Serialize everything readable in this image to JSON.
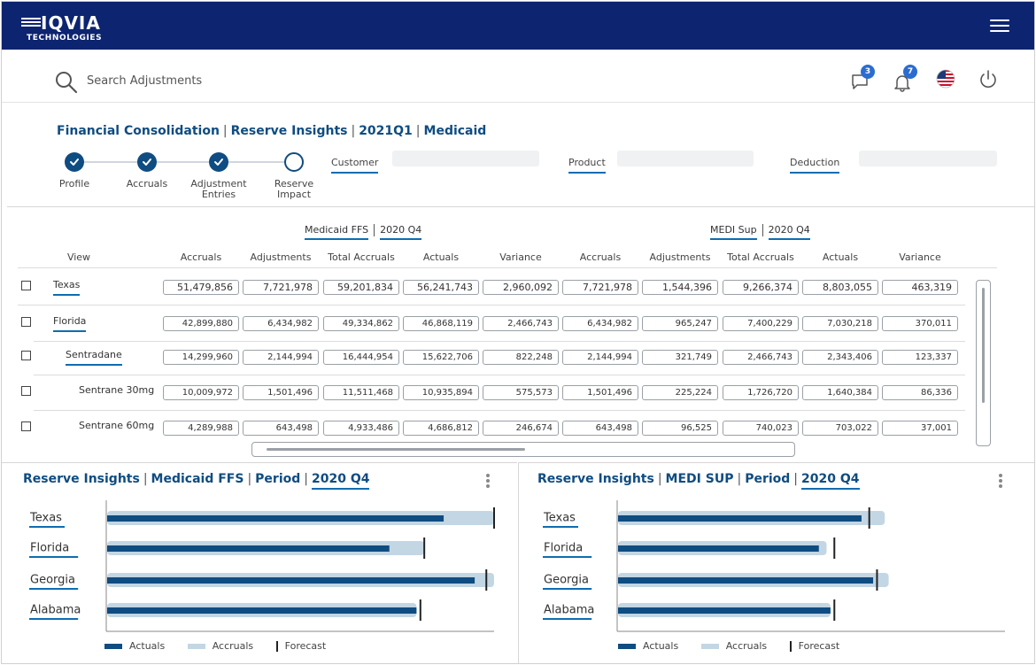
{
  "app": {
    "brand_name": "IQVIA",
    "brand_sub": "TECHNOLOGIES"
  },
  "search": {
    "placeholder": "Search Adjustments"
  },
  "header_icons": {
    "messages_badge": "3",
    "notifications_badge": "7"
  },
  "breadcrumb": [
    "Financial Consolidation",
    "Reserve Insights",
    "2021Q1",
    "Medicaid"
  ],
  "steps": [
    {
      "label": "Profile",
      "done": true
    },
    {
      "label": "Accruals",
      "done": true
    },
    {
      "label": "Adjustment Entries",
      "done": true
    },
    {
      "label": "Reserve Impact",
      "done": false
    }
  ],
  "filters": {
    "customer": "Customer",
    "product": "Product",
    "deduction": "Deduction"
  },
  "table": {
    "group1": {
      "name": "Medicaid FFS",
      "period": "2020 Q4"
    },
    "group2": {
      "name": "MEDI Sup",
      "period": "2020 Q4"
    },
    "view_header": "View",
    "columns": [
      "Accruals",
      "Adjustments",
      "Total Accruals",
      "Actuals",
      "Variance",
      "Accruals",
      "Adjustments",
      "Total Accruals",
      "Actuals",
      "Variance"
    ],
    "rows": [
      {
        "name": "Texas",
        "values": [
          "51,479,856",
          "7,721,978",
          "59,201,834",
          "56,241,743",
          "2,960,092",
          "7,721,978",
          "1,544,396",
          "9,266,374",
          "8,803,055",
          "463,319"
        ]
      },
      {
        "name": "Florida",
        "values": [
          "42,899,880",
          "6,434,982",
          "49,334,862",
          "46,868,119",
          "2,466,743",
          "6,434,982",
          "965,247",
          "7,400,229",
          "7,030,218",
          "370,011"
        ]
      },
      {
        "name": "Sentradane",
        "values": [
          "14,299,960",
          "2,144,994",
          "16,444,954",
          "15,622,706",
          "822,248",
          "2,144,994",
          "321,749",
          "2,466,743",
          "2,343,406",
          "123,337"
        ]
      },
      {
        "name": "Sentrane 30mg",
        "values": [
          "10,009,972",
          "1,501,496",
          "11,511,468",
          "10,935,894",
          "575,573",
          "1,501,496",
          "225,224",
          "1,726,720",
          "1,640,384",
          "86,336"
        ]
      },
      {
        "name": "Sentrane 60mg",
        "values": [
          "4,289,988",
          "643,498",
          "4,933,486",
          "4,686,812",
          "246,674",
          "643,498",
          "96,525",
          "740,023",
          "703,022",
          "37,001"
        ]
      }
    ]
  },
  "panel_left": {
    "title": [
      "Reserve Insights",
      "Medicaid FFS",
      "Period",
      "2020 Q4"
    ]
  },
  "panel_right": {
    "title": [
      "Reserve Insights",
      "MEDI SUP",
      "Period",
      "2020 Q4"
    ]
  },
  "legend": {
    "actuals": "Actuals",
    "accruals": "Accruals",
    "forecast": "Forecast"
  },
  "colors": {
    "navy": "#0d2470",
    "primary": "#0f4c81",
    "accent": "#0f6cb1",
    "bar_actual": "#0f4c81",
    "bar_accrual": "#c3d6e4",
    "forecast": "#222222"
  },
  "chart_data": [
    {
      "type": "bar",
      "orientation": "horizontal",
      "categories": [
        "Texas",
        "Florida",
        "Georgia",
        "Alabama"
      ],
      "series": [
        {
          "name": "Actuals",
          "values": [
            87,
            73,
            95,
            80
          ]
        },
        {
          "name": "Accruals",
          "values": [
            100,
            82,
            100,
            80
          ]
        },
        {
          "name": "Forecast",
          "values": [
            100,
            82,
            98,
            81
          ]
        }
      ],
      "xlim": [
        0,
        100
      ]
    },
    {
      "type": "bar",
      "orientation": "horizontal",
      "categories": [
        "Texas",
        "Florida",
        "Georgia",
        "Alabama"
      ],
      "series": [
        {
          "name": "Actuals",
          "values": [
            63,
            52,
            66,
            55
          ]
        },
        {
          "name": "Accruals",
          "values": [
            69,
            54,
            70,
            55
          ]
        },
        {
          "name": "Forecast",
          "values": [
            65,
            56,
            67,
            56
          ]
        }
      ],
      "xlim": [
        0,
        100
      ]
    }
  ]
}
